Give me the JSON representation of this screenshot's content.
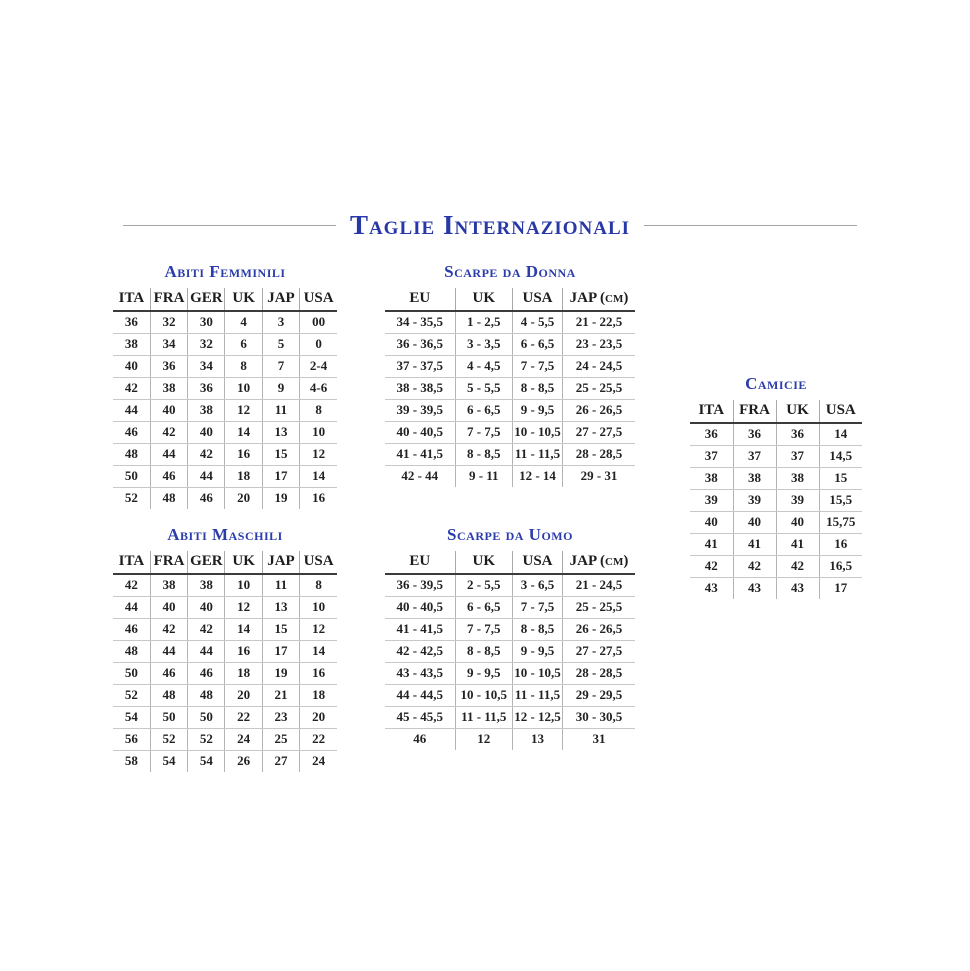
{
  "page": {
    "title": "Taglie Internazionali"
  },
  "colors": {
    "accent_blue": "#2838a8",
    "table_text": "#1d1d1d",
    "header_underline": "#3b3b3b",
    "grid_line": "#b4b4b4",
    "title_rule": "#a3a3a8",
    "background": "#ffffff"
  },
  "tables": [
    {
      "id": "abiti-femminili",
      "heading": "Abiti Femminili",
      "columns": [
        "ITA",
        "FRA",
        "GER",
        "UK",
        "JAP",
        "USA"
      ],
      "rows": [
        [
          "36",
          "32",
          "30",
          "4",
          "3",
          "00"
        ],
        [
          "38",
          "34",
          "32",
          "6",
          "5",
          "0"
        ],
        [
          "40",
          "36",
          "34",
          "8",
          "7",
          "2-4"
        ],
        [
          "42",
          "38",
          "36",
          "10",
          "9",
          "4-6"
        ],
        [
          "44",
          "40",
          "38",
          "12",
          "11",
          "8"
        ],
        [
          "46",
          "42",
          "40",
          "14",
          "13",
          "10"
        ],
        [
          "48",
          "44",
          "42",
          "16",
          "15",
          "12"
        ],
        [
          "50",
          "46",
          "44",
          "18",
          "17",
          "14"
        ],
        [
          "52",
          "48",
          "46",
          "20",
          "19",
          "16"
        ]
      ]
    },
    {
      "id": "scarpe-da-donna",
      "heading": "Scarpe da Donna",
      "columns": [
        "EU",
        "UK",
        "USA",
        "JAP (cm)"
      ],
      "rows": [
        [
          "34 - 35,5",
          "1 - 2,5",
          "4 - 5,5",
          "21 - 22,5"
        ],
        [
          "36 - 36,5",
          "3 - 3,5",
          "6 - 6,5",
          "23 - 23,5"
        ],
        [
          "37 - 37,5",
          "4 - 4,5",
          "7 - 7,5",
          "24 - 24,5"
        ],
        [
          "38 - 38,5",
          "5 - 5,5",
          "8 - 8,5",
          "25 - 25,5"
        ],
        [
          "39 - 39,5",
          "6 - 6,5",
          "9 - 9,5",
          "26 - 26,5"
        ],
        [
          "40 - 40,5",
          "7 - 7,5",
          "10 - 10,5",
          "27 - 27,5"
        ],
        [
          "41 - 41,5",
          "8 - 8,5",
          "11 - 11,5",
          "28 - 28,5"
        ],
        [
          "42 - 44",
          "9 - 11",
          "12 - 14",
          "29 - 31"
        ]
      ]
    },
    {
      "id": "camicie",
      "heading": "Camicie",
      "columns": [
        "ITA",
        "FRA",
        "UK",
        "USA"
      ],
      "rows": [
        [
          "36",
          "36",
          "36",
          "14"
        ],
        [
          "37",
          "37",
          "37",
          "14,5"
        ],
        [
          "38",
          "38",
          "38",
          "15"
        ],
        [
          "39",
          "39",
          "39",
          "15,5"
        ],
        [
          "40",
          "40",
          "40",
          "15,75"
        ],
        [
          "41",
          "41",
          "41",
          "16"
        ],
        [
          "42",
          "42",
          "42",
          "16,5"
        ],
        [
          "43",
          "43",
          "43",
          "17"
        ]
      ]
    },
    {
      "id": "abiti-maschili",
      "heading": "Abiti Maschili",
      "columns": [
        "ITA",
        "FRA",
        "GER",
        "UK",
        "JAP",
        "USA"
      ],
      "rows": [
        [
          "42",
          "38",
          "38",
          "10",
          "11",
          "8"
        ],
        [
          "44",
          "40",
          "40",
          "12",
          "13",
          "10"
        ],
        [
          "46",
          "42",
          "42",
          "14",
          "15",
          "12"
        ],
        [
          "48",
          "44",
          "44",
          "16",
          "17",
          "14"
        ],
        [
          "50",
          "46",
          "46",
          "18",
          "19",
          "16"
        ],
        [
          "52",
          "48",
          "48",
          "20",
          "21",
          "18"
        ],
        [
          "54",
          "50",
          "50",
          "22",
          "23",
          "20"
        ],
        [
          "56",
          "52",
          "52",
          "24",
          "25",
          "22"
        ],
        [
          "58",
          "54",
          "54",
          "26",
          "27",
          "24"
        ]
      ]
    },
    {
      "id": "scarpe-da-uomo",
      "heading": "Scarpe da Uomo",
      "columns": [
        "EU",
        "UK",
        "USA",
        "JAP (cm)"
      ],
      "rows": [
        [
          "36 - 39,5",
          "2 - 5,5",
          "3 - 6,5",
          "21 - 24,5"
        ],
        [
          "40 - 40,5",
          "6 - 6,5",
          "7 - 7,5",
          "25 - 25,5"
        ],
        [
          "41 - 41,5",
          "7 - 7,5",
          "8 - 8,5",
          "26 - 26,5"
        ],
        [
          "42 - 42,5",
          "8 - 8,5",
          "9 - 9,5",
          "27 - 27,5"
        ],
        [
          "43 - 43,5",
          "9 - 9,5",
          "10 - 10,5",
          "28 - 28,5"
        ],
        [
          "44 - 44,5",
          "10 - 10,5",
          "11 - 11,5",
          "29 - 29,5"
        ],
        [
          "45 - 45,5",
          "11 - 11,5",
          "12 - 12,5",
          "30 - 30,5"
        ],
        [
          "46",
          "12",
          "13",
          "31"
        ]
      ]
    }
  ]
}
